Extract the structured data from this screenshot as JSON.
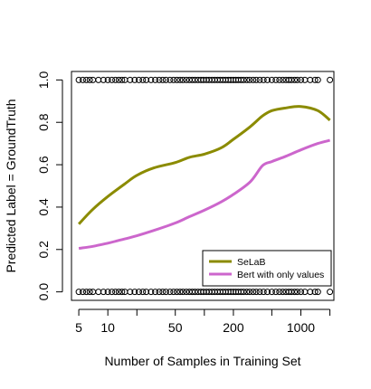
{
  "chart_data": {
    "type": "scatter",
    "title": "",
    "xlabel": "Number of Samples in Training Set",
    "ylabel": "Predicted Label = GroundTruth",
    "x_scale": "log",
    "xlim": [
      4.2,
      2200
    ],
    "ylim": [
      0,
      1
    ],
    "x_ticks": [
      5,
      10,
      20,
      50,
      100,
      200,
      500,
      1000,
      2000
    ],
    "x_tick_labels": [
      "5",
      "10",
      "",
      "50",
      "",
      "200",
      "",
      "1000",
      ""
    ],
    "y_ticks": [
      0,
      0.2,
      0.4,
      0.6,
      0.8,
      1
    ],
    "y_tick_labels": [
      "0.0",
      "0.2",
      "0.4",
      "0.6",
      "0.8",
      "1.0"
    ],
    "grid": false,
    "legend_position": "bottom-right",
    "series": [
      {
        "name": "SeLaB",
        "color": "#8b8b00",
        "x": [
          5,
          7,
          10,
          15,
          20,
          30,
          50,
          70,
          100,
          150,
          200,
          300,
          400,
          500,
          700,
          1000,
          1500,
          2000
        ],
        "y": [
          0.32,
          0.39,
          0.45,
          0.51,
          0.55,
          0.585,
          0.61,
          0.635,
          0.65,
          0.68,
          0.72,
          0.78,
          0.83,
          0.855,
          0.868,
          0.875,
          0.855,
          0.81
        ]
      },
      {
        "name": "Bert with only values",
        "color": "#cc66cc",
        "x": [
          5,
          7,
          10,
          15,
          20,
          30,
          50,
          70,
          100,
          150,
          200,
          300,
          400,
          500,
          700,
          1000,
          1500,
          2000
        ],
        "y": [
          0.205,
          0.215,
          0.23,
          0.25,
          0.265,
          0.29,
          0.325,
          0.355,
          0.385,
          0.425,
          0.46,
          0.52,
          0.595,
          0.615,
          0.64,
          0.67,
          0.7,
          0.715
        ]
      }
    ],
    "observations": {
      "y_values": [
        0,
        1
      ],
      "x_at_one": [
        5,
        5.5,
        6,
        6.5,
        7,
        8,
        9,
        10,
        11,
        12,
        13,
        14,
        15,
        17,
        19,
        21,
        23,
        25,
        28,
        31,
        34,
        37,
        40,
        44,
        48,
        52,
        56,
        60,
        65,
        70,
        75,
        80,
        86,
        92,
        98,
        105,
        112,
        120,
        128,
        137,
        146,
        156,
        166,
        177,
        188,
        200,
        212,
        225,
        240,
        255,
        275,
        295,
        320,
        345,
        375,
        410,
        450,
        500,
        550,
        600,
        650,
        700,
        750,
        800,
        860,
        920,
        1000,
        1100,
        1250,
        1400,
        1500,
        2000
      ],
      "x_at_zero": [
        5,
        5.5,
        6,
        6.5,
        7,
        8,
        9,
        10,
        11,
        12,
        13,
        14,
        15,
        17,
        19,
        21,
        23,
        25,
        28,
        31,
        34,
        37,
        40,
        44,
        48,
        52,
        56,
        60,
        65,
        70,
        75,
        80,
        86,
        92,
        98,
        105,
        112,
        120,
        128,
        137,
        146,
        156,
        166,
        177,
        188,
        200,
        212,
        225,
        240,
        255,
        275,
        295,
        320,
        345,
        375,
        410,
        450,
        500,
        550,
        600,
        650,
        700,
        750,
        800,
        860,
        920,
        1000,
        1100,
        1250,
        1400,
        1500,
        2000
      ]
    }
  }
}
